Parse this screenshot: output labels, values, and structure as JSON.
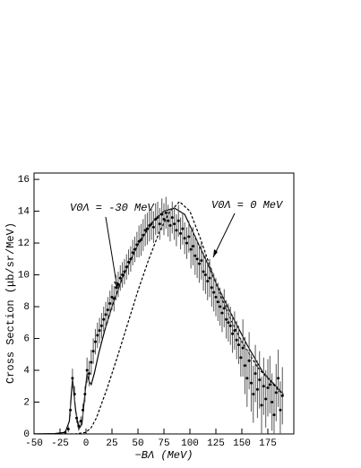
{
  "chart_data": {
    "type": "scatter",
    "xlabel": "−BΛ (MeV)",
    "ylabel": "Cross Section (μb/sr/MeV)",
    "xlim": [
      -50,
      200
    ],
    "ylim": [
      0,
      16.4
    ],
    "xticks": [
      -50,
      -25,
      0,
      25,
      50,
      75,
      100,
      125,
      150,
      175
    ],
    "yticks": [
      0,
      2,
      4,
      6,
      8,
      10,
      12,
      14,
      16
    ],
    "color": "#000000",
    "points": {
      "x": [
        -20,
        -17,
        -15,
        -13,
        -11,
        -9,
        -7,
        -5,
        -3,
        -1,
        1,
        3,
        5,
        7,
        9,
        11,
        13,
        15,
        17,
        19,
        21,
        23,
        25,
        27,
        29,
        31,
        33,
        35,
        37,
        39,
        41,
        43,
        45,
        47,
        49,
        51,
        53,
        55,
        57,
        59,
        61,
        63,
        65,
        67,
        69,
        71,
        73,
        75,
        77,
        79,
        81,
        83,
        85,
        87,
        89,
        91,
        93,
        95,
        97,
        99,
        101,
        103,
        105,
        107,
        109,
        111,
        113,
        115,
        117,
        119,
        121,
        123,
        125,
        127,
        129,
        131,
        133,
        135,
        137,
        139,
        141,
        143,
        145,
        147,
        149,
        151,
        153,
        155,
        157,
        159,
        161,
        163,
        165,
        167,
        169,
        171,
        173,
        175,
        177,
        179,
        181,
        183,
        185,
        187,
        189
      ],
      "values": [
        0.1,
        0.3,
        1.5,
        3.5,
        2.5,
        1.0,
        0.5,
        0.8,
        1.5,
        2.5,
        4.0,
        3.8,
        4.5,
        5.2,
        5.8,
        6.2,
        6.5,
        6.8,
        7.2,
        7.5,
        7.8,
        8.2,
        8.6,
        8.5,
        9.2,
        9.4,
        9.8,
        10.0,
        10.2,
        10.5,
        10.8,
        11.0,
        11.4,
        11.6,
        11.9,
        12.1,
        12.2,
        12.5,
        12.8,
        12.9,
        13.1,
        13.2,
        13.0,
        13.5,
        13.6,
        13.2,
        13.8,
        13.5,
        13.9,
        13.4,
        13.1,
        13.6,
        13.2,
        12.8,
        13.4,
        12.6,
        12.9,
        12.3,
        12.0,
        12.4,
        11.6,
        11.8,
        11.2,
        11.0,
        10.7,
        10.9,
        10.2,
        10.0,
        9.6,
        9.8,
        9.2,
        8.9,
        8.6,
        8.3,
        8.0,
        7.6,
        7.9,
        7.2,
        7.0,
        6.8,
        6.3,
        6.5,
        5.9,
        5.6,
        4.8,
        5.4,
        4.3,
        3.5,
        4.6,
        3.2,
        2.5,
        3.8,
        2.8,
        3.4,
        1.8,
        3.0,
        2.2,
        2.9,
        3.1,
        2.0,
        1.2,
        2.6,
        3.5,
        1.5,
        2.4
      ],
      "errors": [
        0.1,
        0.2,
        0.4,
        0.6,
        0.5,
        0.3,
        0.3,
        0.3,
        0.4,
        0.5,
        0.8,
        0.8,
        0.8,
        0.8,
        0.8,
        0.8,
        0.8,
        0.8,
        0.8,
        0.8,
        0.8,
        0.8,
        0.8,
        0.8,
        0.8,
        0.8,
        0.8,
        0.8,
        0.8,
        0.8,
        0.8,
        0.8,
        0.8,
        0.8,
        0.8,
        1.0,
        1.0,
        1.0,
        1.0,
        1.0,
        1.0,
        1.0,
        1.0,
        1.0,
        1.0,
        1.0,
        1.0,
        1.0,
        1.0,
        1.0,
        1.0,
        1.0,
        1.0,
        1.0,
        1.0,
        1.0,
        1.0,
        1.0,
        1.0,
        1.0,
        1.2,
        1.2,
        1.2,
        1.2,
        1.2,
        1.2,
        1.2,
        1.2,
        1.2,
        1.2,
        1.2,
        1.2,
        1.2,
        1.2,
        1.2,
        1.2,
        1.2,
        1.2,
        1.2,
        1.2,
        1.2,
        1.2,
        1.2,
        1.2,
        1.2,
        1.8,
        1.8,
        1.8,
        1.8,
        1.8,
        1.8,
        1.8,
        1.8,
        1.8,
        1.8,
        1.8,
        1.8,
        1.8,
        1.8,
        1.8,
        1.8,
        1.8,
        1.8,
        1.8,
        1.8
      ]
    },
    "curves": [
      {
        "dashed": false,
        "x": [
          -50,
          -30,
          -20,
          -16,
          -13,
          -10,
          -7,
          -4,
          -1,
          1,
          3,
          5,
          8,
          12,
          18,
          25,
          35,
          50,
          65,
          75,
          85,
          95,
          105,
          115,
          125,
          140,
          155,
          170,
          190
        ],
        "values": [
          0,
          0.02,
          0.1,
          0.8,
          3.5,
          1.5,
          0.3,
          0.6,
          2.5,
          3.8,
          3.3,
          3.1,
          3.8,
          5.0,
          6.5,
          8.0,
          9.8,
          11.9,
          13.4,
          14.0,
          14.2,
          13.8,
          12.4,
          11.0,
          9.5,
          7.5,
          5.6,
          3.9,
          2.5
        ]
      },
      {
        "dashed": true,
        "x": [
          -50,
          -10,
          0,
          5,
          10,
          20,
          30,
          40,
          50,
          60,
          70,
          80,
          90,
          100,
          110,
          120,
          130,
          140,
          150,
          165,
          190
        ],
        "values": [
          0,
          0,
          0.1,
          0.4,
          1.0,
          2.8,
          4.8,
          6.9,
          9.0,
          10.9,
          12.6,
          13.9,
          14.6,
          14.0,
          12.3,
          10.4,
          8.6,
          7.1,
          5.8,
          4.2,
          2.4
        ]
      }
    ],
    "annotations": [
      "V0Λ = -30 MeV",
      "V0Λ = 0 MeV"
    ]
  }
}
